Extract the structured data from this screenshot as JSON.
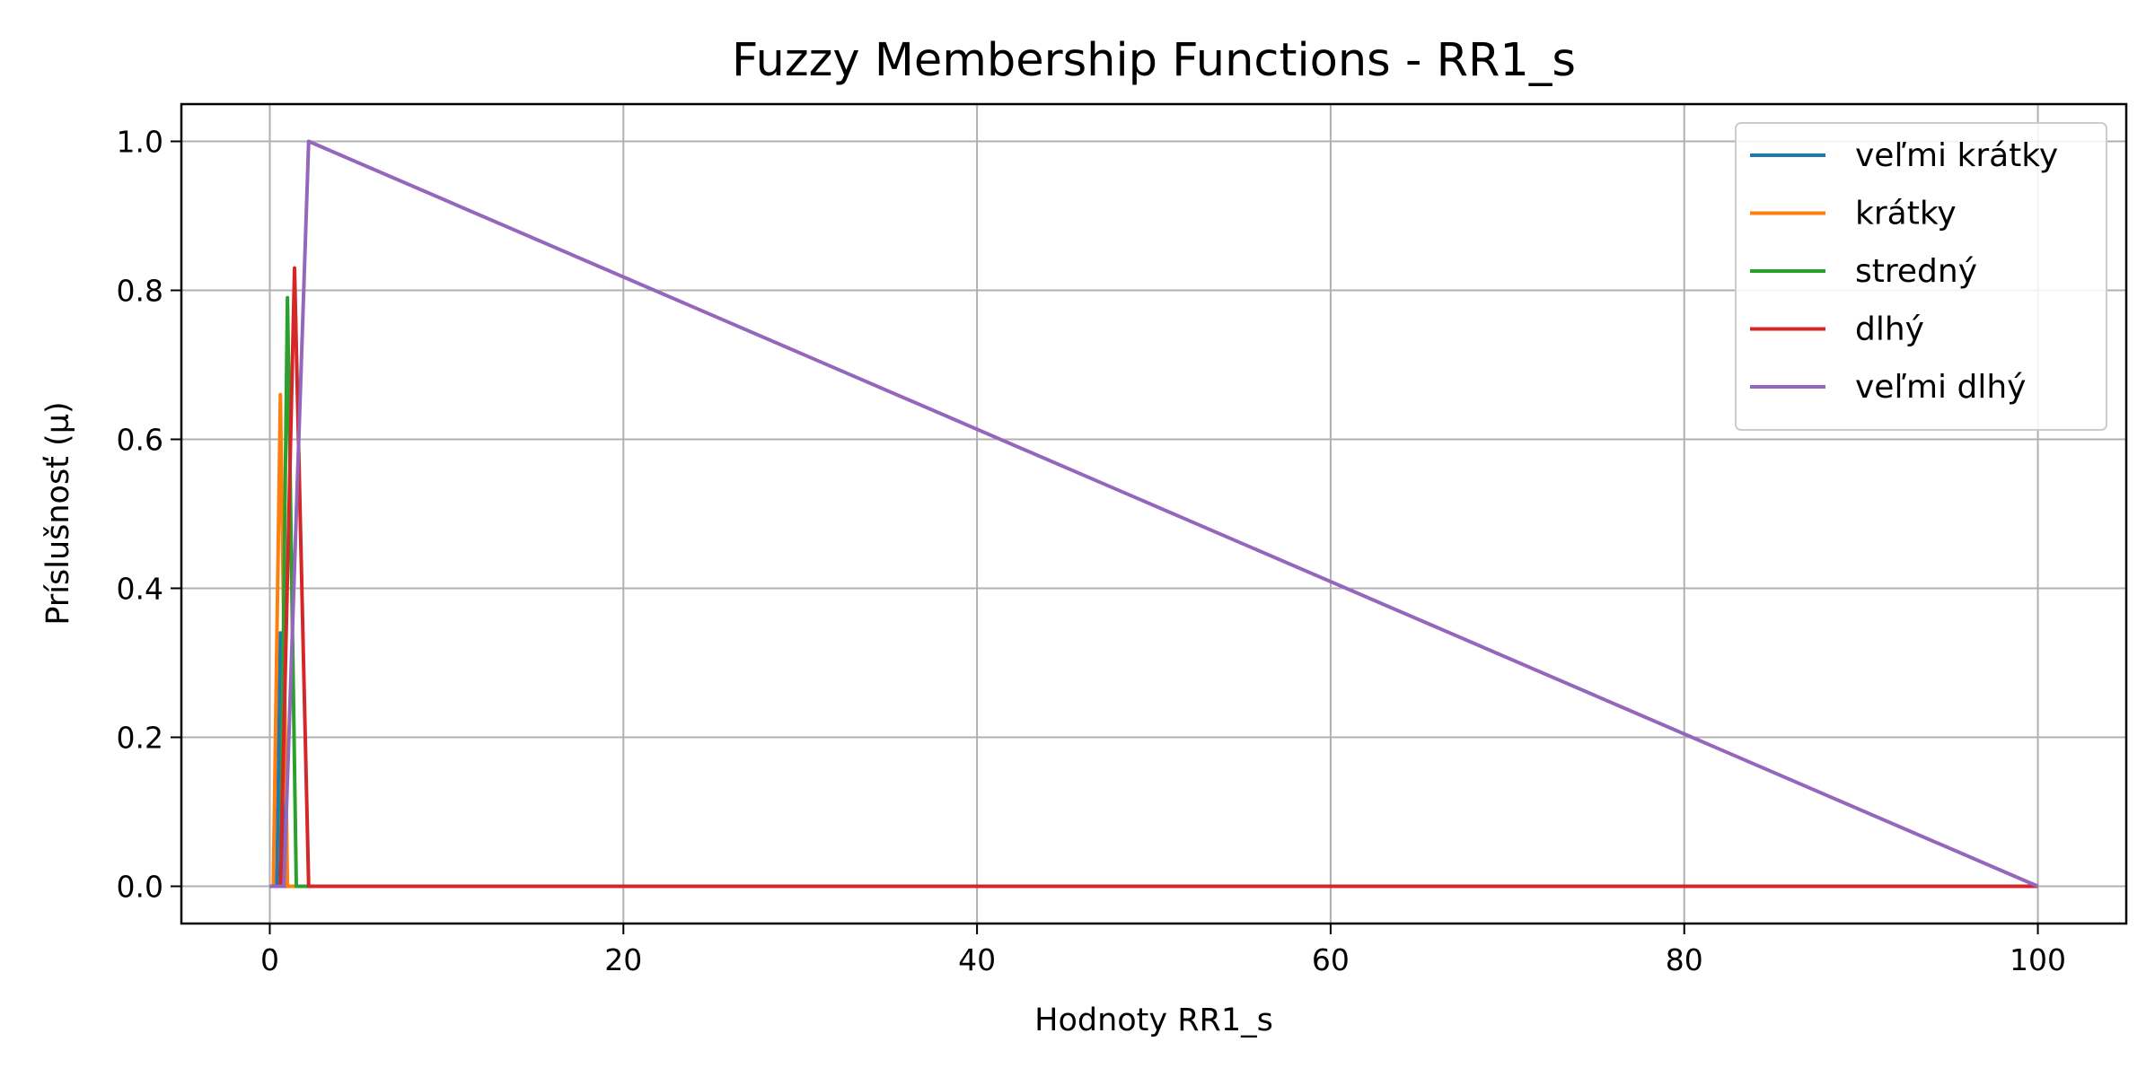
{
  "chart_data": {
    "type": "line",
    "title": "Fuzzy Membership Functions - RR1_s",
    "xlabel": "Hodnoty RR1_s",
    "ylabel": "Príslušnosť (µ)",
    "xlim": [
      -5,
      105
    ],
    "ylim": [
      -0.05,
      1.05
    ],
    "xticks": [
      0,
      20,
      40,
      60,
      80,
      100
    ],
    "yticks": [
      0.0,
      0.2,
      0.4,
      0.6,
      0.8,
      1.0
    ],
    "xtick_labels": [
      "0",
      "20",
      "40",
      "60",
      "80",
      "100"
    ],
    "ytick_labels": [
      "0.0",
      "0.2",
      "0.4",
      "0.6",
      "0.8",
      "1.0"
    ],
    "grid": true,
    "legend_position": "top-right",
    "series": [
      {
        "name": "veľmi krátky",
        "color": "#1f77b4",
        "points": [
          [
            0,
            0
          ],
          [
            0.4,
            0.0
          ],
          [
            0.6,
            0.34
          ],
          [
            0.8,
            0.0
          ],
          [
            100,
            0
          ]
        ]
      },
      {
        "name": "krátky",
        "color": "#ff7f0e",
        "points": [
          [
            0,
            0
          ],
          [
            0.2,
            0.0
          ],
          [
            0.6,
            0.66
          ],
          [
            1.0,
            0.0
          ],
          [
            100,
            0
          ]
        ]
      },
      {
        "name": "stredný",
        "color": "#2ca02c",
        "points": [
          [
            0,
            0
          ],
          [
            0.6,
            0.0
          ],
          [
            1.0,
            0.79
          ],
          [
            1.5,
            0.0
          ],
          [
            100,
            0
          ]
        ]
      },
      {
        "name": "dlhý",
        "color": "#d62728",
        "points": [
          [
            0,
            0
          ],
          [
            0.6,
            0.0
          ],
          [
            1.4,
            0.83
          ],
          [
            2.2,
            0.0
          ],
          [
            100,
            0
          ]
        ]
      },
      {
        "name": "veľmi dlhý",
        "color": "#9467bd",
        "points": [
          [
            0,
            0
          ],
          [
            0.8,
            0.0
          ],
          [
            2.2,
            1.0
          ],
          [
            100,
            0
          ]
        ]
      }
    ]
  }
}
